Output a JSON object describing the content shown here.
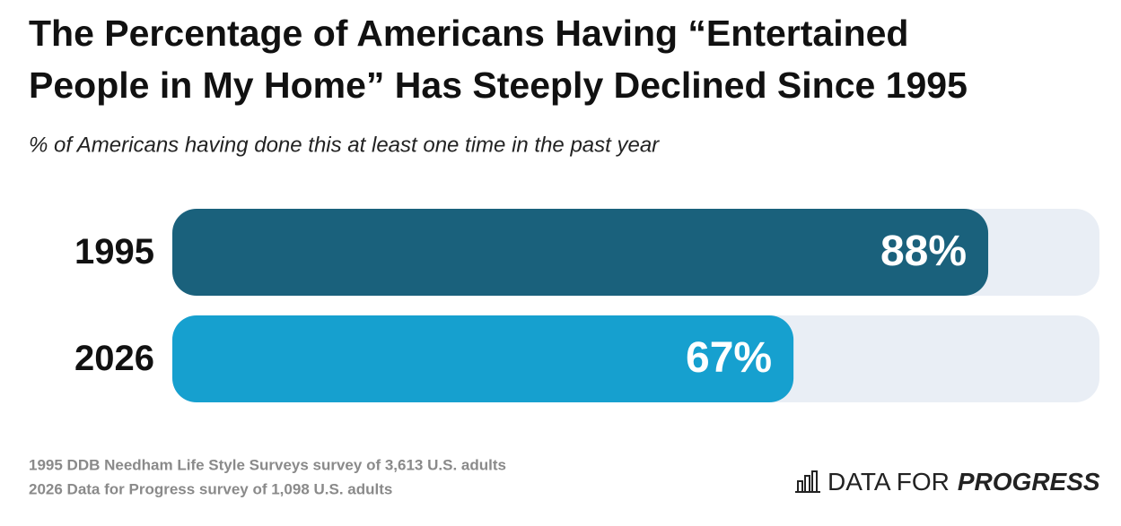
{
  "chart_data": {
    "type": "bar",
    "orientation": "horizontal",
    "title": [
      "The Percentage of Americans Having “Entertained",
      "People in My Home” Has Steeply Declined Since 1995"
    ],
    "subtitle": "% of Americans having done this at least one time in the past year",
    "categories": [
      "1995",
      "2026"
    ],
    "values": [
      88,
      67
    ],
    "value_labels": [
      "88%",
      "67%"
    ],
    "colors": [
      "#1a617c",
      "#16a0cf"
    ],
    "track_color": "#e9eef5",
    "xlim": [
      0,
      100
    ],
    "sources": [
      "1995 DDB Needham Life Style Surveys survey of 3,613 U.S. adults",
      "2026 Data for Progress survey of 1,098 U.S. adults"
    ],
    "brand": [
      "DATA FOR",
      "PROGRESS"
    ]
  }
}
